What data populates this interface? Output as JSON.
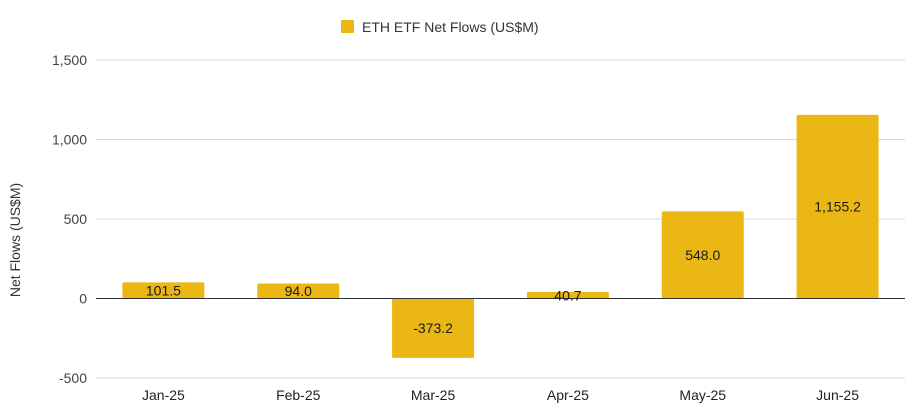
{
  "colors": {
    "bar": "#ebb715",
    "grid": "#d9d9d9",
    "zero_line": "#333333"
  },
  "chart_data": {
    "type": "bar",
    "categories": [
      "Jan-25",
      "Feb-25",
      "Mar-25",
      "Apr-25",
      "May-25",
      "Jun-25"
    ],
    "series": [
      {
        "name": "ETH ETF Net Flows (US$M)",
        "values": [
          101.5,
          94.0,
          -373.2,
          40.7,
          548.0,
          1155.2
        ],
        "labels": [
          "101.5",
          "94.0",
          "-373.2",
          "40.7",
          "548.0",
          "1,155.2"
        ]
      }
    ],
    "ylabel": "Net Flows (US$M)",
    "ylim": [
      -500,
      1500
    ],
    "yticks": [
      1500,
      1000,
      500,
      0,
      -500
    ],
    "ytick_labels": [
      "1,500",
      "1,000",
      "500",
      "0",
      "-500"
    ],
    "grid": true,
    "legend": "top-center"
  }
}
